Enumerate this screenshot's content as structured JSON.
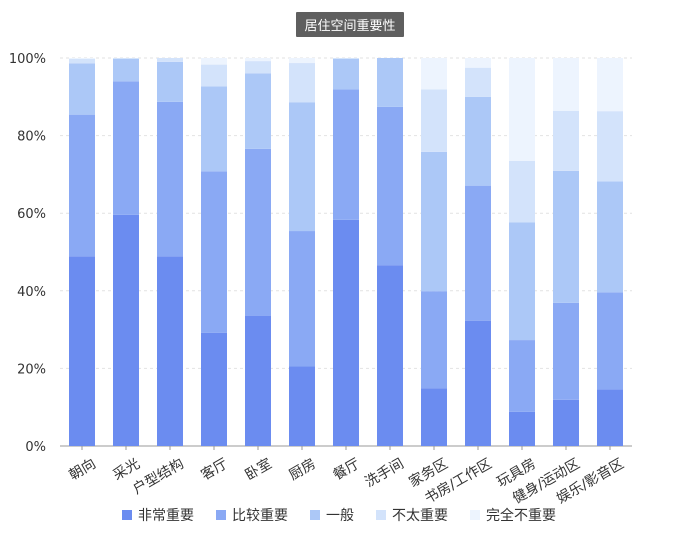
{
  "chart_data": {
    "type": "bar",
    "stacked": true,
    "title": "居住空间重要性",
    "categories": [
      "朝向",
      "采光",
      "户型结构",
      "客厅",
      "卧室",
      "厨房",
      "餐厅",
      "洗手间",
      "家务区",
      "书房/工作区",
      "玩具房",
      "健身/运动区",
      "娱乐/影音区"
    ],
    "series": [
      {
        "name": "非常重要",
        "color": "#6b8cf0",
        "values": [
          48.9,
          59.6,
          48.9,
          29.2,
          33.6,
          20.5,
          58.3,
          46.6,
          14.9,
          32.3,
          8.8,
          11.9,
          14.6
        ]
      },
      {
        "name": "比较重要",
        "color": "#8aa9f4",
        "values": [
          36.5,
          34.4,
          39.8,
          41.6,
          43.0,
          34.9,
          33.6,
          40.8,
          25.0,
          34.8,
          18.5,
          25.0,
          25.0
        ]
      },
      {
        "name": "一般",
        "color": "#acc8f7",
        "values": [
          13.2,
          5.8,
          10.3,
          21.9,
          19.4,
          33.2,
          7.9,
          12.6,
          35.9,
          22.9,
          30.3,
          34.0,
          28.6
        ]
      },
      {
        "name": "不太重要",
        "color": "#d3e3fb",
        "values": [
          1.2,
          0.2,
          1.0,
          5.6,
          3.2,
          10.1,
          0.2,
          0.0,
          16.1,
          7.5,
          15.9,
          15.5,
          18.1
        ]
      },
      {
        "name": "完全不重要",
        "color": "#edf4fe",
        "values": [
          0.2,
          0.0,
          0.0,
          1.7,
          0.8,
          1.3,
          0.0,
          0.0,
          8.1,
          2.5,
          26.5,
          13.6,
          13.7
        ]
      }
    ],
    "yticks": [
      "0%",
      "20%",
      "40%",
      "60%",
      "80%",
      "100%"
    ],
    "ylim": [
      0,
      100
    ],
    "grid": true,
    "legend_position": "bottom"
  }
}
